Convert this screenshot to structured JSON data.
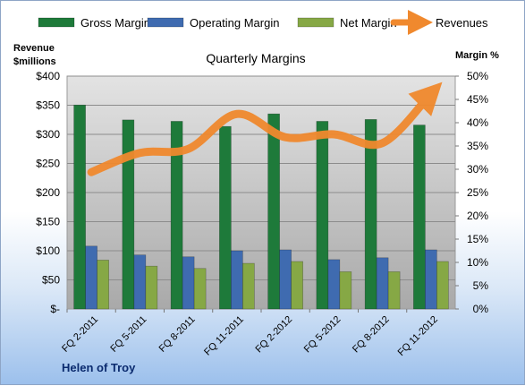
{
  "chart_data": {
    "type": "bar",
    "title": "Quarterly Margins",
    "company": "Helen of Troy",
    "ylabel_left": [
      "Revenue",
      "$millions"
    ],
    "ylabel_right": "Margin %",
    "ylim_left": [
      0,
      400
    ],
    "ylim_right": [
      0,
      50
    ],
    "left_ticks": [
      "$-",
      "$50",
      "$100",
      "$150",
      "$200",
      "$250",
      "$300",
      "$350",
      "$400"
    ],
    "right_ticks": [
      "0%",
      "5%",
      "10%",
      "15%",
      "20%",
      "25%",
      "30%",
      "35%",
      "40%",
      "45%",
      "50%"
    ],
    "grid": true,
    "legend_position": "top",
    "categories": [
      "FQ 2-2011",
      "FQ 5-2011",
      "FQ 8-2011",
      "FQ 11-2011",
      "FQ 2-2012",
      "FQ 5-2012",
      "FQ 8-2012",
      "FQ 11-2012"
    ],
    "series": [
      {
        "name": "Gross Margin",
        "axis": "right",
        "kind": "bar",
        "color": "#1e7a3a",
        "values": [
          43.8,
          40.6,
          40.3,
          39.2,
          41.9,
          40.3,
          40.7,
          39.5
        ]
      },
      {
        "name": "Operating Margin",
        "axis": "right",
        "kind": "bar",
        "color": "#3f6bb0",
        "values": [
          13.5,
          11.6,
          11.2,
          12.5,
          12.7,
          10.6,
          11.0,
          12.7
        ]
      },
      {
        "name": "Net Margin",
        "axis": "right",
        "kind": "bar",
        "color": "#86a845",
        "values": [
          10.5,
          9.2,
          8.7,
          9.8,
          10.2,
          8.0,
          8.0,
          10.2
        ]
      },
      {
        "name": "Revenues",
        "axis": "left",
        "kind": "line",
        "color": "#f0892e",
        "values": [
          235,
          268,
          275,
          335,
          295,
          300,
          285,
          370
        ]
      }
    ]
  }
}
